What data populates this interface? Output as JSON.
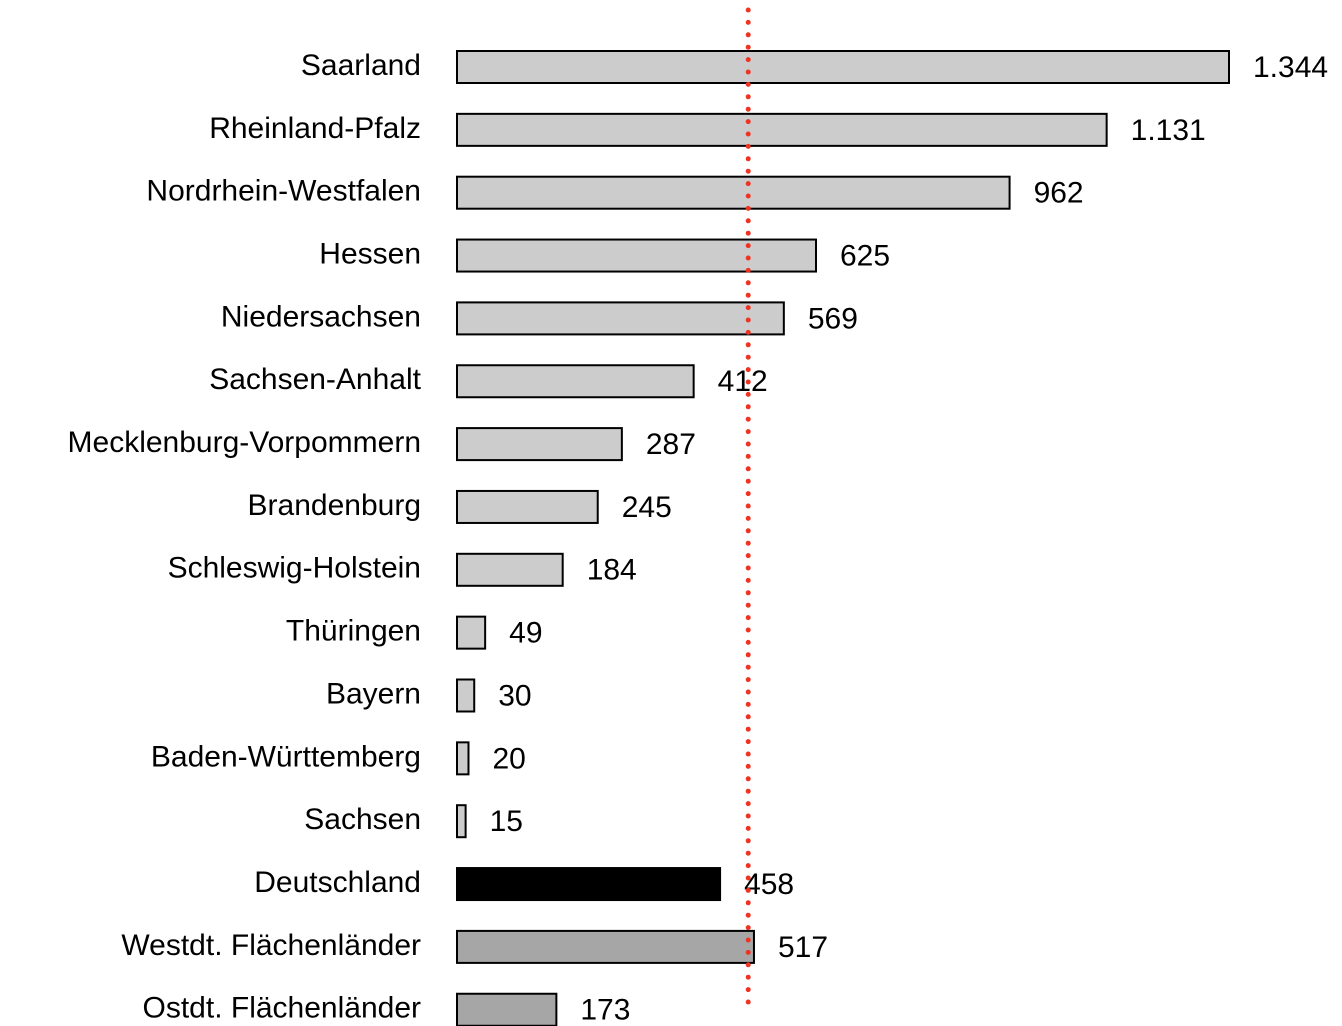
{
  "chart_data": {
    "type": "bar",
    "orientation": "horizontal",
    "categories": [
      "Saarland",
      "Rheinland-Pfalz",
      "Nordrhein-Westfalen",
      "Hessen",
      "Niedersachsen",
      "Sachsen-Anhalt",
      "Mecklenburg-Vorpommern",
      "Brandenburg",
      "Schleswig-Holstein",
      "Thüringen",
      "Bayern",
      "Baden-Württemberg",
      "Sachsen",
      "Deutschland",
      "Westdt. Flächenländer",
      "Ostdt. Flächenländer"
    ],
    "values": [
      1344,
      1131,
      962,
      625,
      569,
      412,
      287,
      245,
      184,
      49,
      30,
      20,
      15,
      458,
      517,
      173
    ],
    "value_labels": [
      "1.344",
      "1.131",
      "962",
      "625",
      "569",
      "412",
      "287",
      "245",
      "184",
      "49",
      "30",
      "20",
      "15",
      "458",
      "517",
      "173"
    ],
    "colors": [
      "#cccccc",
      "#cccccc",
      "#cccccc",
      "#cccccc",
      "#cccccc",
      "#cccccc",
      "#cccccc",
      "#cccccc",
      "#cccccc",
      "#cccccc",
      "#cccccc",
      "#cccccc",
      "#cccccc",
      "#000000",
      "#a6a6a6",
      "#a6a6a6"
    ],
    "xlim": [
      0,
      1344
    ],
    "reference_line": {
      "value": 507,
      "color": "#ee3322"
    }
  }
}
